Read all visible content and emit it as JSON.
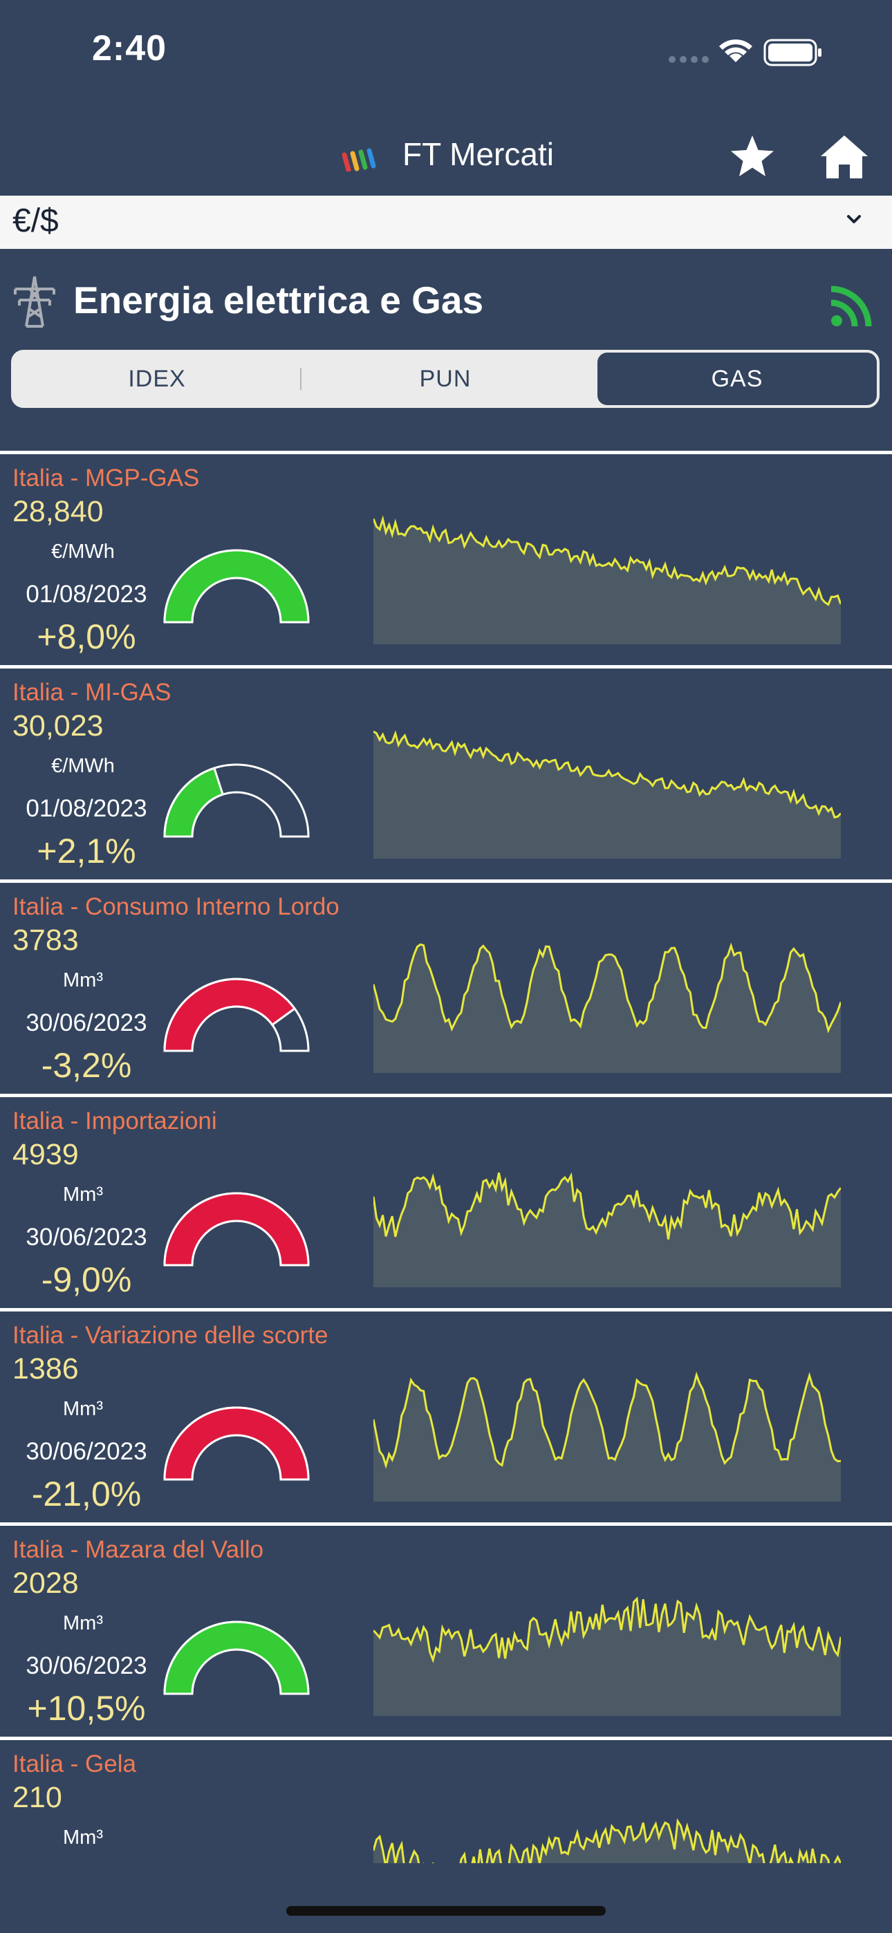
{
  "status_bar": {
    "time": "2:40"
  },
  "nav": {
    "title": "FT Mercati"
  },
  "currency": {
    "label": "€/$"
  },
  "section": {
    "title": "Energia elettrica e Gas"
  },
  "tabs": [
    {
      "label": "IDEX",
      "selected": false
    },
    {
      "label": "PUN",
      "selected": false
    },
    {
      "label": "GAS",
      "selected": true
    }
  ],
  "colors": {
    "positive": "#35cc35",
    "negative": "#e0183f",
    "title": "#f07a56",
    "value": "#f3e595",
    "line": "#e8e83c"
  },
  "items": [
    {
      "title": "Italia - MGP-GAS",
      "value": "28,840",
      "unit": "€/MWh",
      "date": "01/08/2023",
      "change": "+8,0%",
      "gauge_fill": 1.0,
      "status": "positive"
    },
    {
      "title": "Italia - MI-GAS",
      "value": "30,023",
      "unit": "€/MWh",
      "date": "01/08/2023",
      "change": "+2,1%",
      "gauge_fill": 0.4,
      "status": "positive"
    },
    {
      "title": "Italia - Consumo Interno Lordo",
      "value": "3783",
      "unit": "Mm³",
      "date": "30/06/2023",
      "change": "-3,2%",
      "gauge_fill": 0.8,
      "status": "negative"
    },
    {
      "title": "Italia - Importazioni",
      "value": "4939",
      "unit": "Mm³",
      "date": "30/06/2023",
      "change": "-9,0%",
      "gauge_fill": 1.0,
      "status": "negative"
    },
    {
      "title": "Italia - Variazione delle scorte",
      "value": "1386",
      "unit": "Mm³",
      "date": "30/06/2023",
      "change": "-21,0%",
      "gauge_fill": 1.0,
      "status": "negative"
    },
    {
      "title": "Italia - Mazara del Vallo",
      "value": "2028",
      "unit": "Mm³",
      "date": "30/06/2023",
      "change": "+10,5%",
      "gauge_fill": 1.0,
      "status": "positive"
    },
    {
      "title": "Italia - Gela",
      "value": "210",
      "unit": "Mm³",
      "date": "",
      "change": "",
      "gauge_fill": null,
      "status": ""
    }
  ]
}
